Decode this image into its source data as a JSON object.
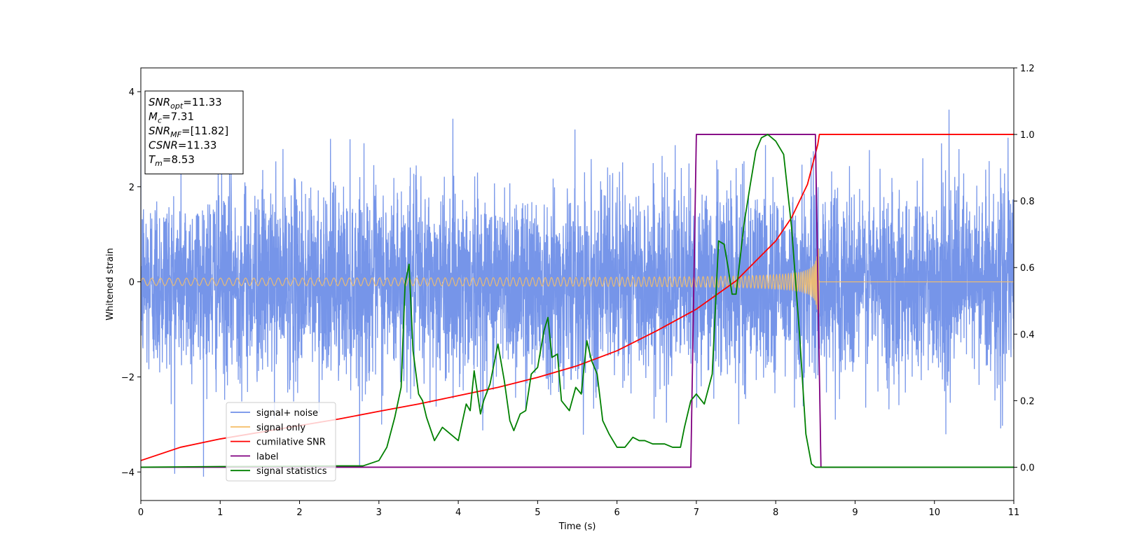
{
  "chart_data": {
    "type": "line",
    "xlabel": "Time (s)",
    "ylabel": "Whitened strain",
    "xlim": [
      0,
      11
    ],
    "ylim": [
      -4.6,
      4.5
    ],
    "y2lim": [
      -0.1,
      1.2
    ],
    "x_ticks": [
      "0",
      "1",
      "2",
      "3",
      "4",
      "5",
      "6",
      "7",
      "8",
      "9",
      "10",
      "11"
    ],
    "y_ticks": [
      "−4",
      "−2",
      "0",
      "2",
      "4"
    ],
    "y2_ticks": [
      "0.0",
      "0.2",
      "0.4",
      "0.6",
      "0.8",
      "1.0",
      "1.2"
    ],
    "grid": false,
    "legend_position": "lower-left",
    "colors": {
      "noise": "#6f8fe8",
      "signal": "#f5bf6a",
      "csnr": "#ff0000",
      "label": "#800080",
      "stats": "#008000"
    },
    "annotation": {
      "lines": [
        {
          "base": "SNR",
          "sub": "opt",
          "rest": "=11.33"
        },
        {
          "base": "M",
          "sub": "c",
          "rest": "=7.31"
        },
        {
          "base": "SNR",
          "sub": "MF",
          "rest": "=[11.82]"
        },
        {
          "base": "CSNR",
          "sub": "",
          "rest": "=11.33"
        },
        {
          "base": "T",
          "sub": "m",
          "rest": "=8.53"
        }
      ]
    },
    "series": [
      {
        "name": "signal+ noise",
        "axis": "left",
        "kind": "noise",
        "x_range": [
          0,
          11
        ],
        "amplitude_sigma": 1.0,
        "peak_abs": 4.1
      },
      {
        "name": "signal only",
        "axis": "left",
        "kind": "chirp",
        "start_amplitude": 0.06,
        "peak_amplitude": 0.72,
        "merger_time": 8.53,
        "end_time": 8.55
      },
      {
        "name": "cumilative SNR",
        "axis": "right",
        "kind": "curve",
        "x": [
          0,
          0.5,
          1,
          1.5,
          2,
          2.5,
          3,
          3.5,
          4,
          4.5,
          5,
          5.5,
          6,
          6.5,
          7,
          7.5,
          8,
          8.2,
          8.4,
          8.53,
          8.55,
          11
        ],
        "y": [
          0.02,
          0.06,
          0.085,
          0.105,
          0.125,
          0.145,
          0.168,
          0.19,
          0.215,
          0.24,
          0.27,
          0.305,
          0.35,
          0.41,
          0.475,
          0.56,
          0.68,
          0.75,
          0.85,
          0.97,
          1.0,
          1.0
        ]
      },
      {
        "name": "label",
        "axis": "right",
        "kind": "curve",
        "x": [
          0,
          6.93,
          7.0,
          8.5,
          8.57,
          11
        ],
        "y": [
          0,
          0,
          1,
          1,
          0,
          0
        ]
      },
      {
        "name": "signal statistics",
        "axis": "right",
        "kind": "curve",
        "x": [
          0,
          1,
          2,
          2.5,
          2.8,
          3.0,
          3.1,
          3.2,
          3.28,
          3.33,
          3.38,
          3.43,
          3.5,
          3.55,
          3.6,
          3.7,
          3.8,
          3.9,
          4.0,
          4.1,
          4.15,
          4.2,
          4.28,
          4.32,
          4.4,
          4.5,
          4.58,
          4.65,
          4.7,
          4.78,
          4.85,
          4.92,
          5.0,
          5.08,
          5.13,
          5.18,
          5.25,
          5.3,
          5.4,
          5.48,
          5.55,
          5.62,
          5.68,
          5.75,
          5.82,
          5.9,
          6.0,
          6.1,
          6.2,
          6.28,
          6.35,
          6.45,
          6.52,
          6.6,
          6.7,
          6.8,
          6.85,
          6.93,
          7.0,
          7.1,
          7.2,
          7.28,
          7.35,
          7.4,
          7.45,
          7.5,
          7.6,
          7.68,
          7.75,
          7.82,
          7.9,
          8.0,
          8.1,
          8.2,
          8.3,
          8.38,
          8.45,
          8.5,
          8.55,
          8.6,
          8.65,
          11
        ],
        "y": [
          0,
          0.002,
          0.003,
          0.004,
          0.004,
          0.02,
          0.06,
          0.15,
          0.24,
          0.55,
          0.61,
          0.35,
          0.22,
          0.2,
          0.15,
          0.08,
          0.12,
          0.1,
          0.08,
          0.19,
          0.17,
          0.29,
          0.16,
          0.2,
          0.25,
          0.37,
          0.26,
          0.14,
          0.11,
          0.16,
          0.17,
          0.28,
          0.3,
          0.41,
          0.45,
          0.33,
          0.34,
          0.2,
          0.17,
          0.24,
          0.22,
          0.38,
          0.32,
          0.28,
          0.14,
          0.1,
          0.06,
          0.06,
          0.09,
          0.08,
          0.08,
          0.07,
          0.07,
          0.07,
          0.06,
          0.06,
          0.12,
          0.2,
          0.22,
          0.19,
          0.28,
          0.68,
          0.67,
          0.6,
          0.52,
          0.52,
          0.73,
          0.85,
          0.95,
          0.99,
          1.0,
          0.98,
          0.94,
          0.72,
          0.4,
          0.1,
          0.01,
          0,
          0,
          0,
          0,
          0
        ]
      }
    ]
  }
}
